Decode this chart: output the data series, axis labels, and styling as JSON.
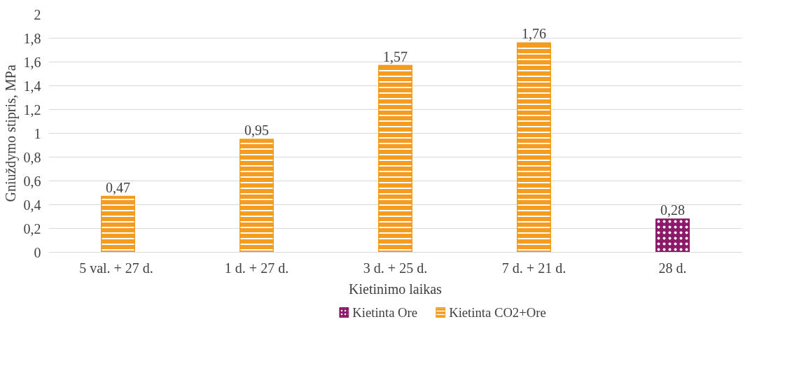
{
  "chart_data": {
    "type": "bar",
    "xlabel": "Kietinimo laikas",
    "ylabel": "Gniuždymo stipris, MPa",
    "categories": [
      "5  val. + 27 d.",
      "1 d. + 27 d.",
      "3 d. + 25 d.",
      "7 d. + 21 d.",
      "28 d."
    ],
    "series": [
      {
        "name": "Kietinta Ore",
        "color": "#8b1a6b",
        "values": [
          null,
          null,
          null,
          null,
          0.28
        ],
        "value_labels": [
          null,
          null,
          null,
          null,
          "0,28"
        ]
      },
      {
        "name": "Kietinta CO2+Ore",
        "color": "#f39c1f",
        "values": [
          0.47,
          0.95,
          1.57,
          1.76,
          null
        ],
        "value_labels": [
          "0,47",
          "0,95",
          "1,57",
          "1,76",
          null
        ]
      }
    ],
    "ylim": [
      0,
      2
    ],
    "yticks": [
      {
        "value": 0,
        "label": "0"
      },
      {
        "value": 0.2,
        "label": "0,2"
      },
      {
        "value": 0.4,
        "label": "0,4"
      },
      {
        "value": 0.6,
        "label": "0,6"
      },
      {
        "value": 0.8,
        "label": "0,8"
      },
      {
        "value": 1,
        "label": "1"
      },
      {
        "value": 1.2,
        "label": "1,2"
      },
      {
        "value": 1.4,
        "label": "1,4"
      },
      {
        "value": 1.6,
        "label": "1,6"
      },
      {
        "value": 1.8,
        "label": "1,8"
      },
      {
        "value": 2,
        "label": "2"
      }
    ],
    "grid": "y",
    "legend": "bottom"
  }
}
